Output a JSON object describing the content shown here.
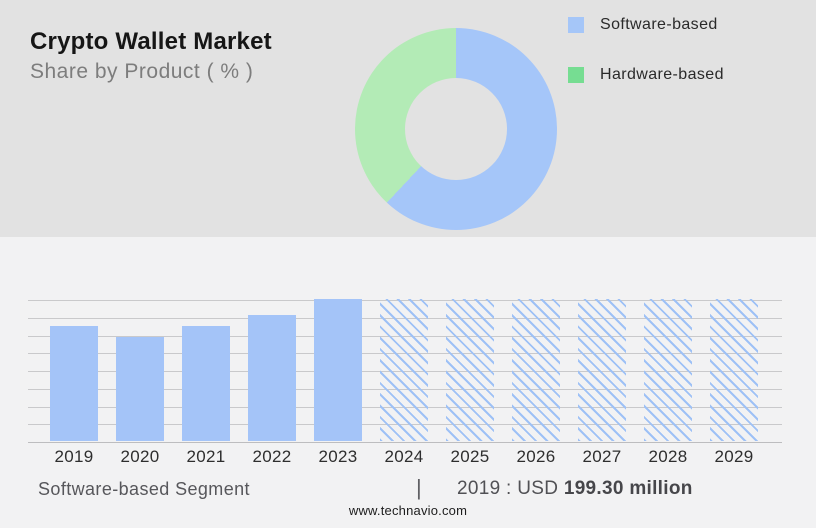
{
  "header": {
    "title": "Crypto Wallet Market",
    "subtitle": "Share by Product ( % )"
  },
  "legend": {
    "items": [
      {
        "label": "Software-based",
        "color": "#a5c6f8"
      },
      {
        "label": "Hardware-based",
        "color": "#76dd92"
      }
    ]
  },
  "footer": {
    "segment_label": "Software-based Segment",
    "divider": "|",
    "value_prefix": "2019 : USD",
    "value_bold": "199.30 million",
    "website": "www.technavio.com"
  },
  "chart_data": [
    {
      "type": "pie",
      "title": "Crypto Wallet Market — Share by Product ( % )",
      "labels": [
        "Software-based",
        "Hardware-based"
      ],
      "values": [
        62,
        38
      ],
      "colors": [
        "#a5c6f9",
        "#b3ebb6"
      ],
      "donut": true,
      "start_angle_deg": 0,
      "direction": "clockwise",
      "legend_position": "right",
      "note": "No percentage labels shown on slices; values estimated from arc angles"
    },
    {
      "type": "bar",
      "categories": [
        "2019",
        "2020",
        "2021",
        "2022",
        "2023",
        "2024",
        "2025",
        "2026",
        "2027",
        "2028",
        "2029"
      ],
      "values": [
        81,
        73,
        81,
        89,
        100,
        100,
        100,
        100,
        100,
        100,
        100
      ],
      "unit": "relative height, 2023 = 100 (y-axis has no tick labels)",
      "solid_years": [
        "2019",
        "2020",
        "2021",
        "2022",
        "2023"
      ],
      "forecast_hatched_years": [
        "2024",
        "2025",
        "2026",
        "2027",
        "2028",
        "2029"
      ],
      "bar_color": "#a4c4f8",
      "hatch_color": "#9ec1f6",
      "grid": true,
      "gridline_count": 9,
      "xlabel": "",
      "ylabel": "",
      "annotation": "Software-based Segment | 2019 : USD 199.30 million"
    }
  ]
}
